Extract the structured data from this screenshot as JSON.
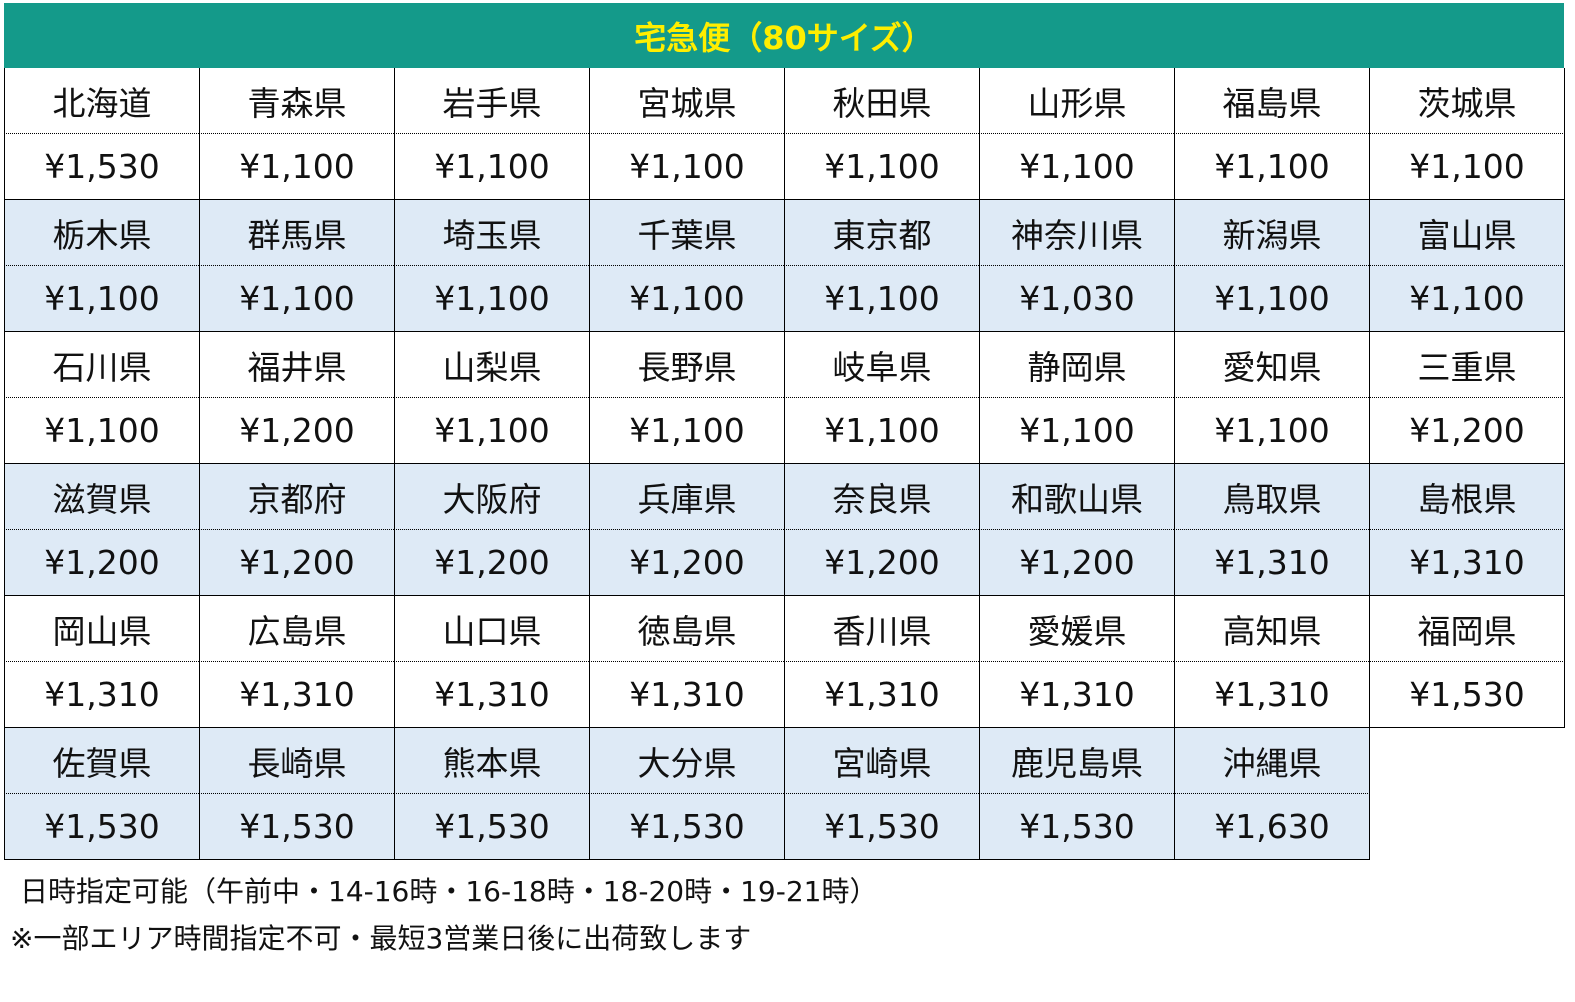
{
  "title": "宅急便（80サイズ）",
  "colors": {
    "header_bg": "#149a8a",
    "header_text": "#ffee00",
    "band_alt": "#deeaf6",
    "band": "#ffffff"
  },
  "rates": [
    [
      [
        "北海道",
        "¥1,530"
      ],
      [
        "青森県",
        "¥1,100"
      ],
      [
        "岩手県",
        "¥1,100"
      ],
      [
        "宮城県",
        "¥1,100"
      ],
      [
        "秋田県",
        "¥1,100"
      ],
      [
        "山形県",
        "¥1,100"
      ],
      [
        "福島県",
        "¥1,100"
      ],
      [
        "茨城県",
        "¥1,100"
      ]
    ],
    [
      [
        "栃木県",
        "¥1,100"
      ],
      [
        "群馬県",
        "¥1,100"
      ],
      [
        "埼玉県",
        "¥1,100"
      ],
      [
        "千葉県",
        "¥1,100"
      ],
      [
        "東京都",
        "¥1,100"
      ],
      [
        "神奈川県",
        "¥1,030"
      ],
      [
        "新潟県",
        "¥1,100"
      ],
      [
        "富山県",
        "¥1,100"
      ]
    ],
    [
      [
        "石川県",
        "¥1,100"
      ],
      [
        "福井県",
        "¥1,200"
      ],
      [
        "山梨県",
        "¥1,100"
      ],
      [
        "長野県",
        "¥1,100"
      ],
      [
        "岐阜県",
        "¥1,100"
      ],
      [
        "静岡県",
        "¥1,100"
      ],
      [
        "愛知県",
        "¥1,100"
      ],
      [
        "三重県",
        "¥1,200"
      ]
    ],
    [
      [
        "滋賀県",
        "¥1,200"
      ],
      [
        "京都府",
        "¥1,200"
      ],
      [
        "大阪府",
        "¥1,200"
      ],
      [
        "兵庫県",
        "¥1,200"
      ],
      [
        "奈良県",
        "¥1,200"
      ],
      [
        "和歌山県",
        "¥1,200"
      ],
      [
        "鳥取県",
        "¥1,310"
      ],
      [
        "島根県",
        "¥1,310"
      ]
    ],
    [
      [
        "岡山県",
        "¥1,310"
      ],
      [
        "広島県",
        "¥1,310"
      ],
      [
        "山口県",
        "¥1,310"
      ],
      [
        "徳島県",
        "¥1,310"
      ],
      [
        "香川県",
        "¥1,310"
      ],
      [
        "愛媛県",
        "¥1,310"
      ],
      [
        "高知県",
        "¥1,310"
      ],
      [
        "福岡県",
        "¥1,530"
      ]
    ],
    [
      [
        "佐賀県",
        "¥1,530"
      ],
      [
        "長崎県",
        "¥1,530"
      ],
      [
        "熊本県",
        "¥1,530"
      ],
      [
        "大分県",
        "¥1,530"
      ],
      [
        "宮崎県",
        "¥1,530"
      ],
      [
        "鹿児島県",
        "¥1,530"
      ],
      [
        "沖縄県",
        "¥1,630"
      ]
    ]
  ],
  "notes": {
    "delivery_time": "日時指定可能（午前中・14-16時・16-18時・18-20時・19-21時）",
    "disclaimer": "※一部エリア時間指定不可・最短3営業日後に出荷致します"
  }
}
